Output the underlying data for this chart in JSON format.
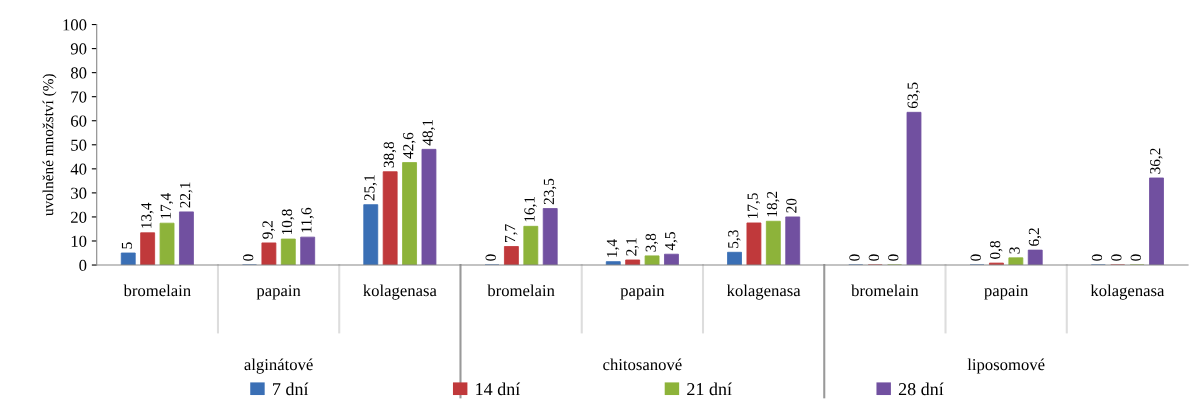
{
  "chart_data": {
    "type": "bar",
    "ylabel": "uvolněné množství (%)",
    "categories": [
      "bromelain",
      "papain",
      "kolagenasa",
      "bromelain",
      "papain",
      "kolagenasa",
      "bromelain",
      "papain",
      "kolagenasa"
    ],
    "annotations": [
      "alginátové",
      "chitosanové",
      "liposomové"
    ],
    "ylim": [
      0,
      100
    ],
    "yticks": [
      0,
      10,
      20,
      30,
      40,
      50,
      60,
      70,
      80,
      90,
      100
    ],
    "grid": false,
    "legend": "bottom",
    "series": [
      {
        "name": "7 dní",
        "color": "#3a6fb5",
        "values": [
          5,
          0,
          25.1,
          0,
          1.4,
          5.3,
          0,
          0,
          0
        ],
        "value_labels": [
          "5",
          "0",
          "25,1",
          "0",
          "1,4",
          "5,3",
          "0",
          "0",
          "0"
        ]
      },
      {
        "name": "14 dní",
        "color": "#c0393b",
        "values": [
          13.4,
          9.2,
          38.8,
          7.7,
          2.1,
          17.5,
          0,
          0.8,
          0
        ],
        "value_labels": [
          "13,4",
          "9,2",
          "38,8",
          "7,7",
          "2,1",
          "17,5",
          "0",
          "0,8",
          "0"
        ]
      },
      {
        "name": "21 dní",
        "color": "#8db33a",
        "values": [
          17.4,
          10.8,
          42.6,
          16.1,
          3.8,
          18.2,
          0,
          3,
          0
        ],
        "value_labels": [
          "17,4",
          "10,8",
          "42,6",
          "16,1",
          "3,8",
          "18,2",
          "0",
          "3",
          "0"
        ]
      },
      {
        "name": "28 dní",
        "color": "#7150a0",
        "values": [
          22.1,
          11.6,
          48.1,
          23.5,
          4.5,
          20,
          63.5,
          6.2,
          36.2
        ],
        "value_labels": [
          "22,1",
          "11,6",
          "48,1",
          "23,5",
          "4,5",
          "20",
          "63,5",
          "6,2",
          "36,2"
        ]
      }
    ]
  }
}
